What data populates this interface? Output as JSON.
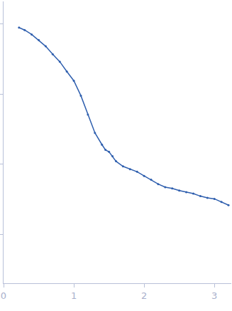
{
  "chart_data": {
    "type": "scatter",
    "color": "#2f5fae",
    "marker": "circle",
    "log": "y",
    "tick_labels": "x",
    "x": [
      0.22,
      0.3,
      0.4,
      0.5,
      0.6,
      0.7,
      0.8,
      0.9,
      1.0,
      1.1,
      1.2,
      1.3,
      1.4,
      1.45,
      1.5,
      1.55,
      1.6,
      1.7,
      1.8,
      1.9,
      2.0,
      2.1,
      2.2,
      2.3,
      2.4,
      2.5,
      2.6,
      2.7,
      2.8,
      2.9,
      3.0,
      3.1,
      3.2
    ],
    "values": [
      0.89,
      0.82,
      0.71,
      0.59,
      0.48,
      0.37,
      0.29,
      0.21,
      0.155,
      0.095,
      0.051,
      0.028,
      0.019,
      0.016,
      0.015,
      0.013,
      0.011,
      0.0093,
      0.0085,
      0.0078,
      0.0068,
      0.006,
      0.0052,
      0.0047,
      0.0045,
      0.0042,
      0.004,
      0.0038,
      0.0035,
      0.0033,
      0.0032,
      0.0029,
      0.0026
    ],
    "xlim": [
      0,
      3.24
    ],
    "xticks": [
      0,
      1,
      2,
      3
    ],
    "ylim": [
      0.0002,
      2.1
    ],
    "yticks": [
      0.001,
      0.01,
      0.1,
      1
    ]
  }
}
